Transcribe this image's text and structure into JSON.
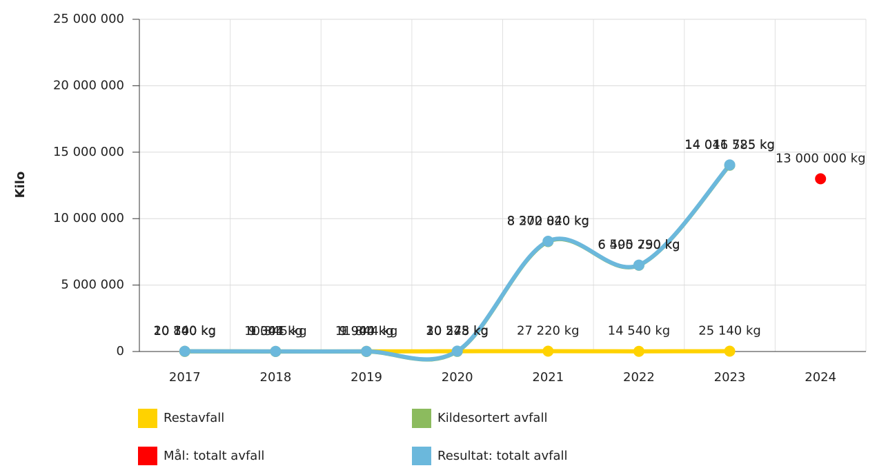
{
  "chart_data": {
    "type": "line",
    "y_label": "Kilo",
    "categories": [
      "2017",
      "2018",
      "2019",
      "2020",
      "2021",
      "2022",
      "2023",
      "2024"
    ],
    "ylim": [
      0,
      25000000
    ],
    "yticks": [
      0,
      {
        "value": 5000000,
        "label": "5 000 000"
      },
      {
        "value": 10000000,
        "label": "10 000 000"
      },
      {
        "value": 15000000,
        "label": "15 000 000"
      },
      {
        "value": 20000000,
        "label": "20 000 000"
      },
      {
        "value": 25000000,
        "label": "25 000 000"
      }
    ],
    "grid": true,
    "series": [
      {
        "name": "Restavfall",
        "color": "#ffd200",
        "values": [
          10700,
          9304,
          9940,
          20245,
          27220,
          14540,
          25140,
          null
        ],
        "value_labels": [
          "10 700 kg",
          "9 304 kg",
          "9 940 kg",
          "20 245 kg",
          "27 220 kg",
          "14 540 kg",
          "25 140 kg",
          null
        ]
      },
      {
        "name": "Kildesortert avfall",
        "color": "#8cbb5e",
        "values": [
          10140,
          1041,
          1904,
          10278,
          8272820,
          6490750,
          14016585,
          null
        ],
        "value_labels": [
          "10 140 kg",
          "1 041 kg",
          "1 904 kg",
          "10 278 kg",
          "8 272 820 kg",
          "6 490 750 kg",
          "14 016 585 kg",
          null
        ]
      },
      {
        "name": "Mål: totalt avfall",
        "color": "#ff0000",
        "values": [
          null,
          null,
          null,
          null,
          null,
          null,
          null,
          13000000
        ],
        "value_labels": [
          null,
          null,
          null,
          null,
          null,
          null,
          null,
          "13 000 000 kg"
        ]
      },
      {
        "name": "Resultat: totalt avfall",
        "color": "#6bb8dc",
        "values": [
          20840,
          10345,
          11844,
          30523,
          8300040,
          6505290,
          14041725,
          null
        ],
        "value_labels": [
          "20 840 kg",
          "10 345 kg",
          "11 844 kg",
          "30 523 kg",
          "8 300 040 kg",
          "6 505 290 kg",
          "14 041 725 kg",
          null
        ]
      }
    ]
  }
}
